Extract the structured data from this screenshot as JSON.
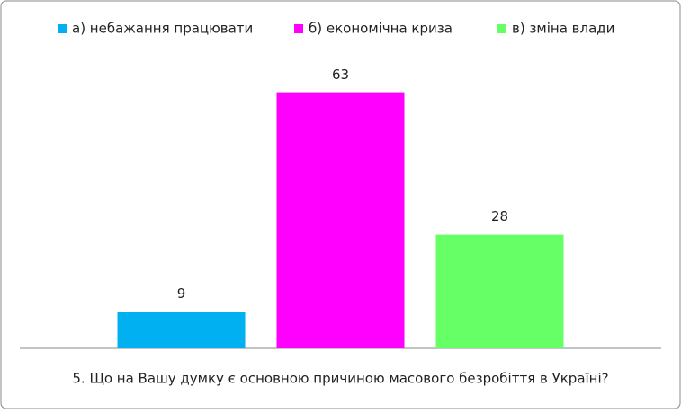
{
  "chart_data": {
    "type": "bar",
    "categories": [
      "5. Що на Вашу думку є основною причиною масового безробіття в Україні?"
    ],
    "series": [
      {
        "name": "а)  небажання працювати",
        "color": "#00b0f0",
        "values": [
          9
        ]
      },
      {
        "name": "б)  економічна криза",
        "color": "#ff00ff",
        "values": [
          63
        ]
      },
      {
        "name": "в)  зміна влади",
        "color": "#66ff66",
        "values": [
          28
        ]
      }
    ],
    "ylim": [
      0,
      70
    ],
    "legend": "top"
  }
}
